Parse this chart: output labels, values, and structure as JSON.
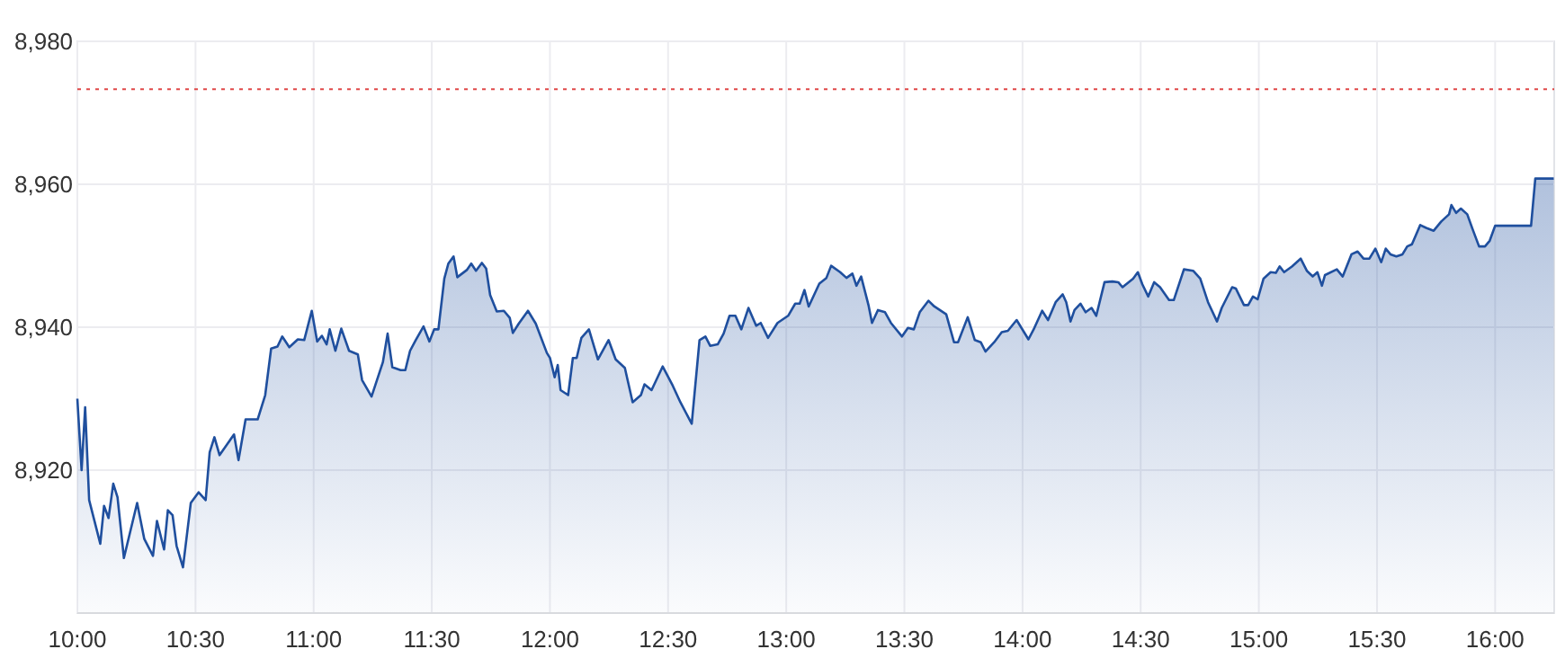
{
  "chart_data": {
    "type": "area",
    "xlim": [
      10,
      16.25
    ],
    "ylim": [
      8900,
      8980
    ],
    "xticks": [
      {
        "value": 10,
        "label": "10:00"
      },
      {
        "value": 10.5,
        "label": "10:30"
      },
      {
        "value": 11,
        "label": "11:00"
      },
      {
        "value": 11.5,
        "label": "11:30"
      },
      {
        "value": 12,
        "label": "12:00"
      },
      {
        "value": 12.5,
        "label": "12:30"
      },
      {
        "value": 13,
        "label": "13:00"
      },
      {
        "value": 13.5,
        "label": "13:30"
      },
      {
        "value": 14,
        "label": "14:00"
      },
      {
        "value": 14.5,
        "label": "14:30"
      },
      {
        "value": 15,
        "label": "15:00"
      },
      {
        "value": 15.5,
        "label": "15:30"
      },
      {
        "value": 16,
        "label": "16:00"
      }
    ],
    "yticks": [
      {
        "value": 8920,
        "label": "8,920"
      },
      {
        "value": 8940,
        "label": "8,940"
      },
      {
        "value": 8960,
        "label": "8,960"
      },
      {
        "value": 8980,
        "label": "8,980"
      }
    ],
    "grid": true,
    "ref_lines": [
      {
        "axis": "y",
        "value": 8973.3,
        "color": "#e04848",
        "line_style": "dotted"
      }
    ],
    "series": [
      {
        "color": "#1f4f9e",
        "x": [
          10.0,
          10.018,
          10.033,
          10.05,
          10.097,
          10.113,
          10.132,
          10.152,
          10.17,
          10.197,
          10.253,
          10.283,
          10.32,
          10.337,
          10.367,
          10.383,
          10.403,
          10.42,
          10.447,
          10.48,
          10.513,
          10.543,
          10.56,
          10.58,
          10.602,
          10.663,
          10.682,
          10.712,
          10.763,
          10.795,
          10.82,
          10.847,
          10.867,
          10.897,
          10.933,
          10.96,
          10.992,
          11.015,
          11.035,
          11.055,
          11.068,
          11.092,
          11.117,
          11.15,
          11.187,
          11.205,
          11.245,
          11.293,
          11.313,
          11.333,
          11.368,
          11.388,
          11.408,
          11.432,
          11.465,
          11.49,
          11.51,
          11.528,
          11.553,
          11.57,
          11.592,
          11.608,
          11.648,
          11.667,
          11.687,
          11.712,
          11.73,
          11.747,
          11.775,
          11.805,
          11.83,
          11.843,
          11.868,
          11.907,
          11.94,
          11.987,
          12.0,
          12.02,
          12.033,
          12.045,
          12.077,
          12.097,
          12.113,
          12.133,
          12.165,
          12.203,
          12.248,
          12.278,
          12.317,
          12.35,
          12.385,
          12.4,
          12.43,
          12.477,
          12.52,
          12.552,
          12.6,
          12.633,
          12.658,
          12.678,
          12.71,
          12.735,
          12.76,
          12.785,
          12.81,
          12.84,
          12.873,
          12.892,
          12.923,
          12.963,
          13.008,
          13.038,
          13.057,
          13.077,
          13.095,
          13.14,
          13.17,
          13.19,
          13.228,
          13.255,
          13.28,
          13.297,
          13.317,
          13.348,
          13.363,
          13.388,
          13.418,
          13.443,
          13.49,
          13.515,
          13.54,
          13.565,
          13.602,
          13.627,
          13.677,
          13.71,
          13.727,
          13.768,
          13.798,
          13.823,
          13.843,
          13.88,
          13.912,
          13.938,
          13.975,
          14.025,
          14.05,
          14.083,
          14.108,
          14.14,
          14.17,
          14.185,
          14.203,
          14.22,
          14.245,
          14.267,
          14.292,
          14.312,
          14.347,
          14.38,
          14.405,
          14.423,
          14.468,
          14.488,
          14.507,
          14.532,
          14.557,
          14.582,
          14.62,
          14.64,
          14.683,
          14.722,
          14.752,
          14.785,
          14.823,
          14.843,
          14.887,
          14.903,
          14.937,
          14.955,
          14.975,
          14.995,
          15.02,
          15.05,
          15.072,
          15.088,
          15.107,
          15.14,
          15.177,
          15.203,
          15.228,
          15.248,
          15.267,
          15.28,
          15.33,
          15.355,
          15.392,
          15.418,
          15.443,
          15.468,
          15.493,
          15.518,
          15.537,
          15.557,
          15.582,
          15.608,
          15.628,
          15.648,
          15.683,
          15.708,
          15.74,
          15.772,
          15.805,
          15.815,
          15.835,
          15.855,
          15.882,
          15.907,
          15.932,
          15.957,
          15.977,
          16.0,
          16.152,
          16.17,
          16.248
        ],
        "values": [
          8930.0,
          8920.0,
          8928.8,
          8915.8,
          8909.7,
          8915.0,
          8913.3,
          8918.1,
          8916.2,
          8907.7,
          8915.4,
          8910.4,
          8908.0,
          8912.9,
          8908.9,
          8914.4,
          8913.7,
          8909.4,
          8906.4,
          8915.4,
          8916.9,
          8915.8,
          8922.5,
          8924.6,
          8922.1,
          8925.0,
          8921.4,
          8927.1,
          8927.1,
          8930.5,
          8937.0,
          8937.3,
          8938.7,
          8937.2,
          8938.3,
          8938.2,
          8942.3,
          8938.0,
          8938.8,
          8937.6,
          8939.7,
          8936.7,
          8939.8,
          8936.7,
          8936.2,
          8932.6,
          8930.3,
          8935.1,
          8939.1,
          8934.4,
          8934.0,
          8934.0,
          8936.7,
          8938.2,
          8940.1,
          8938.0,
          8939.7,
          8939.7,
          8946.8,
          8948.9,
          8949.9,
          8947.0,
          8948.0,
          8948.9,
          8947.9,
          8949.0,
          8948.2,
          8944.5,
          8942.2,
          8942.3,
          8941.3,
          8939.2,
          8940.5,
          8942.3,
          8940.5,
          8936.4,
          8935.7,
          8933.0,
          8934.7,
          8931.2,
          8930.5,
          8935.7,
          8935.7,
          8938.5,
          8939.7,
          8935.5,
          8938.2,
          8935.5,
          8934.3,
          8929.5,
          8930.5,
          8932.0,
          8931.2,
          8934.5,
          8931.8,
          8929.5,
          8926.5,
          8938.2,
          8938.7,
          8937.4,
          8937.6,
          8939.1,
          8941.6,
          8941.6,
          8939.7,
          8942.7,
          8940.2,
          8940.6,
          8938.5,
          8940.6,
          8941.6,
          8943.3,
          8943.3,
          8945.2,
          8942.9,
          8946.1,
          8946.9,
          8948.6,
          8947.7,
          8946.9,
          8947.5,
          8945.8,
          8947.1,
          8943.1,
          8940.6,
          8942.4,
          8942.1,
          8940.6,
          8938.7,
          8939.9,
          8939.7,
          8942.1,
          8943.7,
          8942.9,
          8941.8,
          8937.9,
          8937.9,
          8941.4,
          8938.2,
          8937.9,
          8936.6,
          8937.9,
          8939.3,
          8939.5,
          8941.0,
          8938.3,
          8939.9,
          8942.3,
          8941.0,
          8943.5,
          8944.6,
          8943.5,
          8940.8,
          8942.4,
          8943.3,
          8942.1,
          8942.7,
          8941.6,
          8946.3,
          8946.4,
          8946.3,
          8945.6,
          8946.8,
          8947.7,
          8946.0,
          8944.3,
          8946.3,
          8945.6,
          8943.8,
          8943.8,
          8948.1,
          8947.9,
          8946.8,
          8943.5,
          8940.8,
          8942.7,
          8945.6,
          8945.4,
          8943.1,
          8943.1,
          8944.3,
          8943.9,
          8946.8,
          8947.7,
          8947.6,
          8948.5,
          8947.7,
          8948.5,
          8949.6,
          8947.9,
          8947.1,
          8947.7,
          8945.8,
          8947.3,
          8948.1,
          8947.1,
          8950.2,
          8950.6,
          8949.6,
          8949.6,
          8951.0,
          8949.1,
          8951.0,
          8950.2,
          8949.9,
          8950.2,
          8951.3,
          8951.6,
          8954.3,
          8953.9,
          8953.5,
          8954.8,
          8955.8,
          8957.1,
          8956.0,
          8956.6,
          8955.8,
          8953.5,
          8951.3,
          8951.3,
          8952.1,
          8954.2,
          8954.2,
          8960.8,
          8960.8
        ]
      }
    ]
  }
}
